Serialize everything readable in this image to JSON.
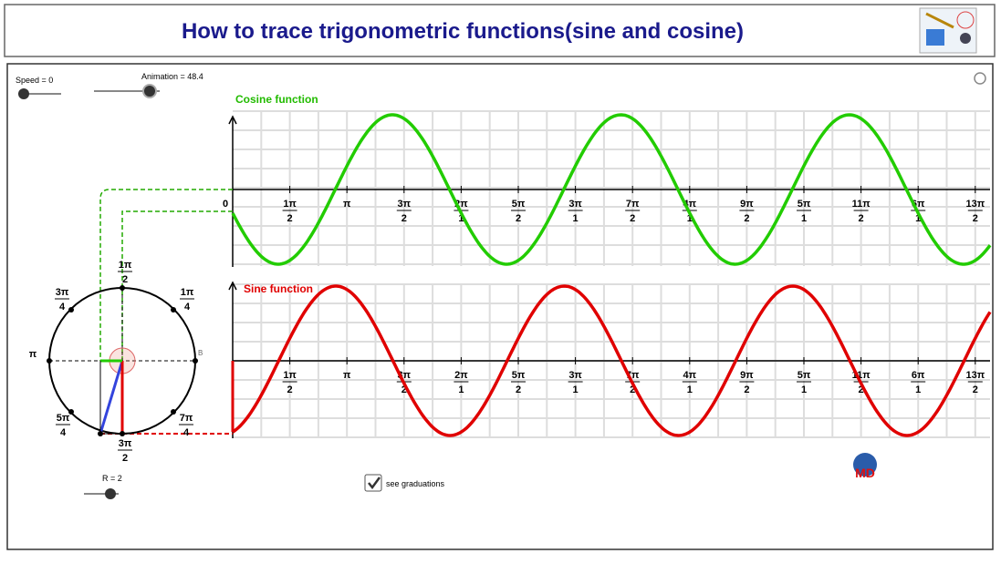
{
  "header": {
    "title": "How to trace trigonometric functions(sine and cosine)"
  },
  "controls": {
    "speed": "Speed = 0",
    "animation": "Animation = 48.4",
    "radius": "R = 2",
    "checkbox": "see graduations"
  },
  "cosine": {
    "label": "Cosine function",
    "origin": "0",
    "ticks": [
      {
        "num": "1π",
        "den": "2"
      },
      {
        "num": "π"
      },
      {
        "num": "3π",
        "den": "2"
      },
      {
        "num": "2π",
        "den": "1"
      },
      {
        "num": "5π",
        "den": "2"
      },
      {
        "num": "3π",
        "den": "1"
      },
      {
        "num": "7π",
        "den": "2"
      },
      {
        "num": "4π",
        "den": "1"
      },
      {
        "num": "9π",
        "den": "2"
      },
      {
        "num": "5π",
        "den": "1"
      },
      {
        "num": "11π",
        "den": "2"
      },
      {
        "num": "6π",
        "den": "1"
      },
      {
        "num": "13π",
        "den": "2"
      }
    ]
  },
  "sine": {
    "label": "Sine function",
    "ticks": [
      {
        "num": "1π",
        "den": "2"
      },
      {
        "num": "π"
      },
      {
        "num": "3π",
        "den": "2"
      },
      {
        "num": "2π",
        "den": "1"
      },
      {
        "num": "5π",
        "den": "2"
      },
      {
        "num": "3π",
        "den": "1"
      },
      {
        "num": "7π",
        "den": "2"
      },
      {
        "num": "4π",
        "den": "1"
      },
      {
        "num": "9π",
        "den": "2"
      },
      {
        "num": "5π",
        "den": "1"
      },
      {
        "num": "11π",
        "den": "2"
      },
      {
        "num": "6π",
        "den": "1"
      },
      {
        "num": "13π",
        "den": "2"
      }
    ]
  },
  "circle": {
    "point": "B",
    "labels": [
      {
        "num": "1π",
        "den": "2"
      },
      {
        "num": "3π",
        "den": "4"
      },
      {
        "num": "1π",
        "den": "4"
      },
      {
        "num": "π"
      },
      {
        "num": "5π",
        "den": "4"
      },
      {
        "num": "7π",
        "den": "4"
      },
      {
        "num": "3π",
        "den": "2"
      }
    ]
  }
}
